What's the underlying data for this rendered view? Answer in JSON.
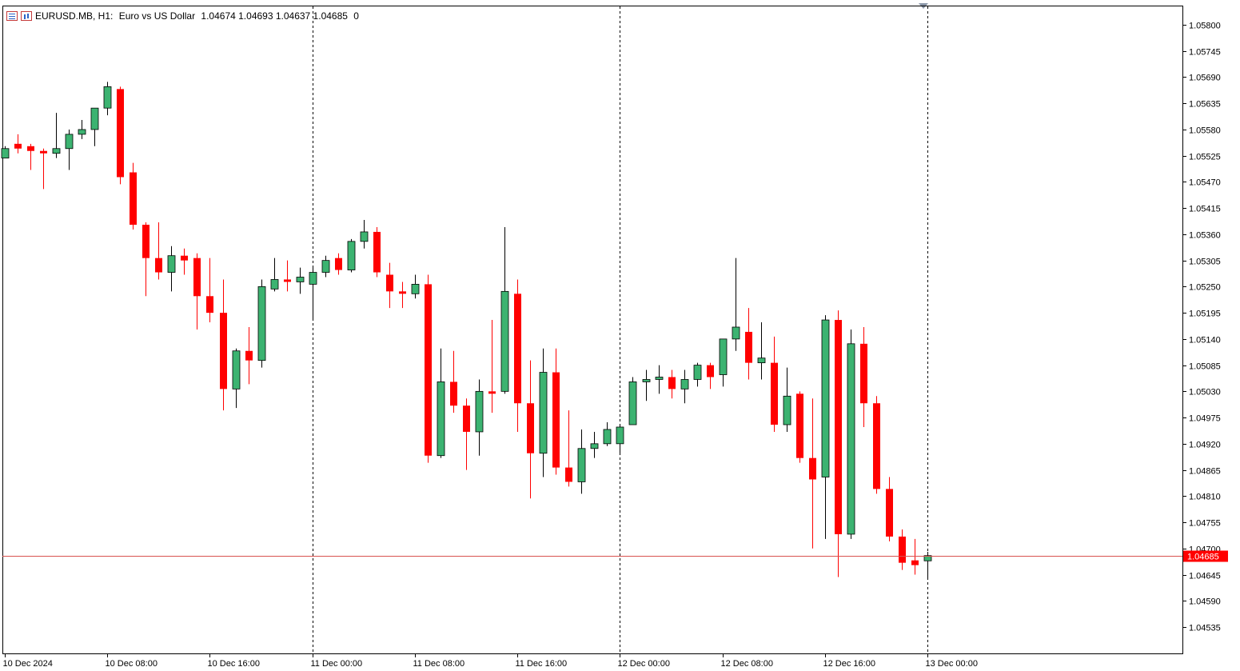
{
  "header": {
    "symbol": "EURUSD.MB, H1:",
    "description": "Euro vs US Dollar",
    "ohlc": "1.04674 1.04693 1.04637 1.04685",
    "volume": "0"
  },
  "current_price_label": "1.04685",
  "colors": {
    "bull": "#3cb371",
    "bear": "#ff0000",
    "bid_line": "#d9534f",
    "separator": "#000000",
    "axis_text": "#000000"
  },
  "chart_data": {
    "type": "candlestick",
    "title": "",
    "symbol": "EURUSD.MB",
    "timeframe": "H1",
    "ylim": [
      1.0448,
      1.05835
    ],
    "y_ticks": [
      "1.05800",
      "1.05745",
      "1.05690",
      "1.05635",
      "1.05580",
      "1.05525",
      "1.05470",
      "1.05415",
      "1.05360",
      "1.05305",
      "1.05250",
      "1.05195",
      "1.05140",
      "1.05085",
      "1.05030",
      "1.04975",
      "1.04920",
      "1.04865",
      "1.04810",
      "1.04755",
      "1.04700",
      "1.04645",
      "1.04590",
      "1.04535"
    ],
    "x_ticks": [
      {
        "label": "10 Dec 2024",
        "index": 0
      },
      {
        "label": "10 Dec 08:00",
        "index": 8
      },
      {
        "label": "10 Dec 16:00",
        "index": 16
      },
      {
        "label": "11 Dec 00:00",
        "index": 24
      },
      {
        "label": "11 Dec 08:00",
        "index": 32
      },
      {
        "label": "11 Dec 16:00",
        "index": 40
      },
      {
        "label": "12 Dec 00:00",
        "index": 48
      },
      {
        "label": "12 Dec 08:00",
        "index": 56
      },
      {
        "label": "12 Dec 16:00",
        "index": 64
      },
      {
        "label": "13 Dec 00:00",
        "index": 72
      }
    ],
    "day_separators": [
      24,
      48,
      72
    ],
    "current_price": 1.04685,
    "candles": [
      {
        "o": 1.0552,
        "h": 1.05545,
        "l": 1.0552,
        "c": 1.0554
      },
      {
        "o": 1.0555,
        "h": 1.0557,
        "l": 1.0553,
        "c": 1.0554
      },
      {
        "o": 1.05545,
        "h": 1.0555,
        "l": 1.05495,
        "c": 1.05535
      },
      {
        "o": 1.05535,
        "h": 1.0554,
        "l": 1.05455,
        "c": 1.0553
      },
      {
        "o": 1.0553,
        "h": 1.05615,
        "l": 1.0552,
        "c": 1.0554
      },
      {
        "o": 1.0554,
        "h": 1.0558,
        "l": 1.05495,
        "c": 1.0557
      },
      {
        "o": 1.0557,
        "h": 1.056,
        "l": 1.0556,
        "c": 1.0558
      },
      {
        "o": 1.0558,
        "h": 1.05625,
        "l": 1.05545,
        "c": 1.05625
      },
      {
        "o": 1.05625,
        "h": 1.0568,
        "l": 1.0561,
        "c": 1.0567
      },
      {
        "o": 1.05665,
        "h": 1.0567,
        "l": 1.05465,
        "c": 1.0548
      },
      {
        "o": 1.0549,
        "h": 1.0551,
        "l": 1.0537,
        "c": 1.0538
      },
      {
        "o": 1.0538,
        "h": 1.05385,
        "l": 1.0523,
        "c": 1.0531
      },
      {
        "o": 1.0531,
        "h": 1.05385,
        "l": 1.05265,
        "c": 1.0528
      },
      {
        "o": 1.0528,
        "h": 1.05335,
        "l": 1.0524,
        "c": 1.05315
      },
      {
        "o": 1.05315,
        "h": 1.0533,
        "l": 1.05275,
        "c": 1.05305
      },
      {
        "o": 1.0531,
        "h": 1.0532,
        "l": 1.0516,
        "c": 1.0523
      },
      {
        "o": 1.0523,
        "h": 1.0531,
        "l": 1.05175,
        "c": 1.05195
      },
      {
        "o": 1.05195,
        "h": 1.05265,
        "l": 1.0499,
        "c": 1.05035
      },
      {
        "o": 1.05035,
        "h": 1.0512,
        "l": 1.04995,
        "c": 1.05115
      },
      {
        "o": 1.05115,
        "h": 1.05165,
        "l": 1.05045,
        "c": 1.05095
      },
      {
        "o": 1.05095,
        "h": 1.05265,
        "l": 1.0508,
        "c": 1.0525
      },
      {
        "o": 1.05245,
        "h": 1.0531,
        "l": 1.0524,
        "c": 1.05265
      },
      {
        "o": 1.05265,
        "h": 1.05305,
        "l": 1.0524,
        "c": 1.0526
      },
      {
        "o": 1.0526,
        "h": 1.0529,
        "l": 1.05235,
        "c": 1.0527
      },
      {
        "o": 1.05255,
        "h": 1.0529,
        "l": 1.0518,
        "c": 1.0528
      },
      {
        "o": 1.0528,
        "h": 1.05315,
        "l": 1.0527,
        "c": 1.05305
      },
      {
        "o": 1.0531,
        "h": 1.0532,
        "l": 1.05275,
        "c": 1.05285
      },
      {
        "o": 1.05285,
        "h": 1.0535,
        "l": 1.0528,
        "c": 1.05345
      },
      {
        "o": 1.05345,
        "h": 1.0539,
        "l": 1.0533,
        "c": 1.05365
      },
      {
        "o": 1.05365,
        "h": 1.05375,
        "l": 1.0527,
        "c": 1.0528
      },
      {
        "o": 1.05275,
        "h": 1.053,
        "l": 1.05205,
        "c": 1.0524
      },
      {
        "o": 1.0524,
        "h": 1.0526,
        "l": 1.05205,
        "c": 1.05235
      },
      {
        "o": 1.05235,
        "h": 1.05275,
        "l": 1.05225,
        "c": 1.05255
      },
      {
        "o": 1.05255,
        "h": 1.05275,
        "l": 1.0488,
        "c": 1.04895
      },
      {
        "o": 1.04895,
        "h": 1.0512,
        "l": 1.0489,
        "c": 1.0505
      },
      {
        "o": 1.0505,
        "h": 1.05115,
        "l": 1.04985,
        "c": 1.05
      },
      {
        "o": 1.05,
        "h": 1.05015,
        "l": 1.04865,
        "c": 1.04945
      },
      {
        "o": 1.04945,
        "h": 1.05055,
        "l": 1.04895,
        "c": 1.0503
      },
      {
        "o": 1.0503,
        "h": 1.0518,
        "l": 1.04985,
        "c": 1.05025
      },
      {
        "o": 1.0503,
        "h": 1.05375,
        "l": 1.05025,
        "c": 1.0524
      },
      {
        "o": 1.05235,
        "h": 1.05265,
        "l": 1.04945,
        "c": 1.05005
      },
      {
        "o": 1.05005,
        "h": 1.05095,
        "l": 1.04805,
        "c": 1.049
      },
      {
        "o": 1.049,
        "h": 1.0512,
        "l": 1.0485,
        "c": 1.0507
      },
      {
        "o": 1.0507,
        "h": 1.0512,
        "l": 1.04855,
        "c": 1.0487
      },
      {
        "o": 1.0487,
        "h": 1.0499,
        "l": 1.0483,
        "c": 1.0484
      },
      {
        "o": 1.0484,
        "h": 1.0495,
        "l": 1.04815,
        "c": 1.0491
      },
      {
        "o": 1.0491,
        "h": 1.04945,
        "l": 1.0489,
        "c": 1.0492
      },
      {
        "o": 1.0492,
        "h": 1.04965,
        "l": 1.04915,
        "c": 1.0495
      },
      {
        "o": 1.0492,
        "h": 1.0496,
        "l": 1.049,
        "c": 1.04955
      },
      {
        "o": 1.0496,
        "h": 1.0506,
        "l": 1.0496,
        "c": 1.0505
      },
      {
        "o": 1.0505,
        "h": 1.05075,
        "l": 1.0501,
        "c": 1.05055
      },
      {
        "o": 1.05055,
        "h": 1.05085,
        "l": 1.05025,
        "c": 1.0506
      },
      {
        "o": 1.0506,
        "h": 1.05075,
        "l": 1.05015,
        "c": 1.05035
      },
      {
        "o": 1.05035,
        "h": 1.05075,
        "l": 1.05005,
        "c": 1.05055
      },
      {
        "o": 1.05055,
        "h": 1.0509,
        "l": 1.0504,
        "c": 1.05085
      },
      {
        "o": 1.05085,
        "h": 1.0509,
        "l": 1.05035,
        "c": 1.0506
      },
      {
        "o": 1.05065,
        "h": 1.0514,
        "l": 1.0504,
        "c": 1.0514
      },
      {
        "o": 1.0514,
        "h": 1.0531,
        "l": 1.05115,
        "c": 1.05165
      },
      {
        "o": 1.05155,
        "h": 1.05205,
        "l": 1.05055,
        "c": 1.0509
      },
      {
        "o": 1.0509,
        "h": 1.05175,
        "l": 1.05055,
        "c": 1.051
      },
      {
        "o": 1.0509,
        "h": 1.05145,
        "l": 1.04945,
        "c": 1.0496
      },
      {
        "o": 1.0496,
        "h": 1.0508,
        "l": 1.04945,
        "c": 1.0502
      },
      {
        "o": 1.05025,
        "h": 1.0503,
        "l": 1.0488,
        "c": 1.0489
      },
      {
        "o": 1.0489,
        "h": 1.05015,
        "l": 1.047,
        "c": 1.04845
      },
      {
        "o": 1.0485,
        "h": 1.0519,
        "l": 1.0472,
        "c": 1.0518
      },
      {
        "o": 1.0518,
        "h": 1.052,
        "l": 1.0464,
        "c": 1.0473
      },
      {
        "o": 1.0473,
        "h": 1.0516,
        "l": 1.0472,
        "c": 1.0513
      },
      {
        "o": 1.0513,
        "h": 1.05165,
        "l": 1.04955,
        "c": 1.05005
      },
      {
        "o": 1.05005,
        "h": 1.0502,
        "l": 1.04815,
        "c": 1.04825
      },
      {
        "o": 1.04825,
        "h": 1.0485,
        "l": 1.04715,
        "c": 1.04725
      },
      {
        "o": 1.04725,
        "h": 1.0474,
        "l": 1.04655,
        "c": 1.0467
      },
      {
        "o": 1.04675,
        "h": 1.0472,
        "l": 1.04645,
        "c": 1.04665
      },
      {
        "o": 1.04674,
        "h": 1.04693,
        "l": 1.04637,
        "c": 1.04685
      }
    ]
  }
}
